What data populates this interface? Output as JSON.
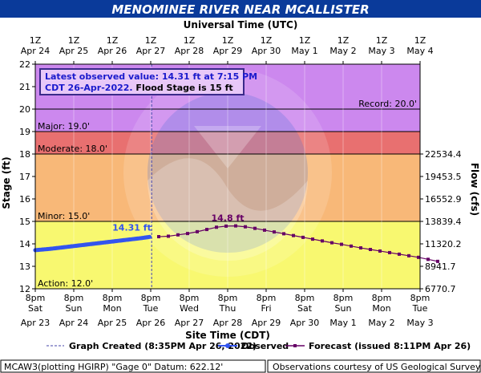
{
  "banner_title": "MENOMINEE RIVER NEAR MCALLISTER",
  "top_axis_title": "Universal Time (UTC)",
  "bottom_axis_title": "Site Time (CDT)",
  "colors": {
    "banner_bg": "#0a3a9a",
    "record_zone": "#cc88ee",
    "major_zone": "#e87070",
    "moderate_zone": "#f8b878",
    "minor_zone": "#f8f870",
    "observed": "#3355ee",
    "forecast": "#660066",
    "info_box_text": "#1a1acc",
    "info_box_bg": "#e8c8f8"
  },
  "info_box": {
    "line1": "Latest observed value: 14.31 ft at 7:15 PM",
    "line2a": "CDT 26-Apr-2022.",
    "line2b": " Flood Stage is 15 ft"
  },
  "annotations": {
    "observed_label": "14.31 ft",
    "forecast_label": "14.8 ft"
  },
  "footer": {
    "left": "MCAW3(plotting HGIRP) \"Gage 0\" Datum: 622.12'",
    "right": "Observations courtesy of US Geological Survey"
  },
  "chart_data": {
    "type": "line",
    "ylabel": "Stage (ft)",
    "y2label": "Flow (cfs)",
    "ylim": [
      12,
      22
    ],
    "y_ticks": [
      12,
      13,
      14,
      15,
      16,
      17,
      18,
      19,
      20,
      21,
      22
    ],
    "flow_ticks": [
      {
        "stage": 12,
        "label": "6770.7"
      },
      {
        "stage": 13,
        "label": "8941.7"
      },
      {
        "stage": 14,
        "label": "11320.2"
      },
      {
        "stage": 15,
        "label": "13839.4"
      },
      {
        "stage": 16,
        "label": "16552.9"
      },
      {
        "stage": 17,
        "label": "19453.5"
      },
      {
        "stage": 18,
        "label": "22534.4"
      }
    ],
    "x_range": [
      "2022-04-23T20:00",
      "2022-05-03T20:00"
    ],
    "top_ticks": [
      {
        "l1": "1Z",
        "l2": "Apr 24"
      },
      {
        "l1": "1Z",
        "l2": "Apr 25"
      },
      {
        "l1": "1Z",
        "l2": "Apr 26"
      },
      {
        "l1": "1Z",
        "l2": "Apr 27"
      },
      {
        "l1": "1Z",
        "l2": "Apr 28"
      },
      {
        "l1": "1Z",
        "l2": "Apr 29"
      },
      {
        "l1": "1Z",
        "l2": "Apr 30"
      },
      {
        "l1": "1Z",
        "l2": "May 1"
      },
      {
        "l1": "1Z",
        "l2": "May 2"
      },
      {
        "l1": "1Z",
        "l2": "May 3"
      },
      {
        "l1": "1Z",
        "l2": "May 4"
      }
    ],
    "bottom_ticks": [
      {
        "l1": "8pm",
        "l2": "Sat",
        "l3": "Apr 23"
      },
      {
        "l1": "8pm",
        "l2": "Sun",
        "l3": "Apr 24"
      },
      {
        "l1": "8pm",
        "l2": "Mon",
        "l3": "Apr 25"
      },
      {
        "l1": "8pm",
        "l2": "Tue",
        "l3": "Apr 26"
      },
      {
        "l1": "8pm",
        "l2": "Wed",
        "l3": "Apr 27"
      },
      {
        "l1": "8pm",
        "l2": "Thu",
        "l3": "Apr 28"
      },
      {
        "l1": "8pm",
        "l2": "Fri",
        "l3": "Apr 29"
      },
      {
        "l1": "8pm",
        "l2": "Sat",
        "l3": "Apr 30"
      },
      {
        "l1": "8pm",
        "l2": "Sun",
        "l3": "May 1"
      },
      {
        "l1": "8pm",
        "l2": "Mon",
        "l3": "May 2"
      },
      {
        "l1": "8pm",
        "l2": "Tue",
        "l3": "May 3"
      }
    ],
    "flood_categories": [
      {
        "name": "Action",
        "label": "Action: 12.0'",
        "stage": 12.0
      },
      {
        "name": "Minor",
        "label": "Minor: 15.0'",
        "stage": 15.0
      },
      {
        "name": "Moderate",
        "label": "Moderate: 18.0'",
        "stage": 18.0
      },
      {
        "name": "Major",
        "label": "Major: 19.0'",
        "stage": 19.0
      },
      {
        "name": "Record",
        "label": "Record: 20.0'",
        "stage": 20.0
      }
    ],
    "graph_created": "2022-04-26T20:35",
    "legend": [
      {
        "type": "dashed",
        "label": "Graph Created (8:35PM Apr 26, 2022)"
      },
      {
        "type": "observed",
        "label": "Observed"
      },
      {
        "type": "forecast",
        "label": "Forecast (issued 8:11PM Apr 26)"
      }
    ],
    "observed": {
      "start": "2022-04-23T20:00",
      "end": "2022-04-26T19:15",
      "values": [
        13.72,
        13.75,
        13.78,
        13.82,
        13.86,
        13.9,
        13.94,
        13.98,
        14.02,
        14.06,
        14.1,
        14.14,
        14.18,
        14.22,
        14.26,
        14.31
      ]
    },
    "forecast": [
      {
        "t": "2022-04-27T01:00",
        "y": 14.32
      },
      {
        "t": "2022-04-27T07:00",
        "y": 14.34
      },
      {
        "t": "2022-04-27T13:00",
        "y": 14.4
      },
      {
        "t": "2022-04-27T19:00",
        "y": 14.46
      },
      {
        "t": "2022-04-28T01:00",
        "y": 14.54
      },
      {
        "t": "2022-04-28T07:00",
        "y": 14.64
      },
      {
        "t": "2022-04-28T13:00",
        "y": 14.74
      },
      {
        "t": "2022-04-28T19:00",
        "y": 14.79
      },
      {
        "t": "2022-04-29T01:00",
        "y": 14.8
      },
      {
        "t": "2022-04-29T07:00",
        "y": 14.76
      },
      {
        "t": "2022-04-29T13:00",
        "y": 14.69
      },
      {
        "t": "2022-04-29T19:00",
        "y": 14.61
      },
      {
        "t": "2022-04-30T01:00",
        "y": 14.53
      },
      {
        "t": "2022-04-30T07:00",
        "y": 14.45
      },
      {
        "t": "2022-04-30T13:00",
        "y": 14.37
      },
      {
        "t": "2022-04-30T19:00",
        "y": 14.29
      },
      {
        "t": "2022-05-01T01:00",
        "y": 14.21
      },
      {
        "t": "2022-05-01T07:00",
        "y": 14.13
      },
      {
        "t": "2022-05-01T13:00",
        "y": 14.05
      },
      {
        "t": "2022-05-01T19:00",
        "y": 13.98
      },
      {
        "t": "2022-05-02T01:00",
        "y": 13.9
      },
      {
        "t": "2022-05-02T07:00",
        "y": 13.82
      },
      {
        "t": "2022-05-02T13:00",
        "y": 13.75
      },
      {
        "t": "2022-05-02T19:00",
        "y": 13.68
      },
      {
        "t": "2022-05-03T01:00",
        "y": 13.61
      },
      {
        "t": "2022-05-03T07:00",
        "y": 13.54
      },
      {
        "t": "2022-05-03T13:00",
        "y": 13.47
      },
      {
        "t": "2022-05-03T19:00",
        "y": 13.4
      },
      {
        "t": "2022-05-04T01:00",
        "y": 13.31
      },
      {
        "t": "2022-05-04T07:00",
        "y": 13.22
      }
    ]
  }
}
